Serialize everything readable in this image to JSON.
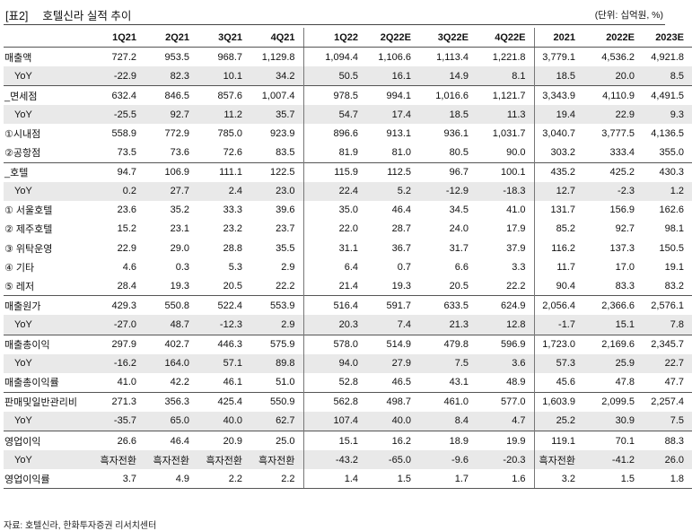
{
  "header": {
    "tag": "[표2]",
    "title": "호텔신라 실적 추이",
    "unit": "(단위: 십억원, %)"
  },
  "columns": [
    "1Q21",
    "2Q21",
    "3Q21",
    "4Q21",
    "1Q22",
    "2Q22E",
    "3Q22E",
    "4Q22E",
    "2021",
    "2022E",
    "2023E"
  ],
  "rows": [
    {
      "label": "매출액",
      "yoy": false,
      "values": [
        "727.2",
        "953.5",
        "968.7",
        "1,129.8",
        "1,094.4",
        "1,106.6",
        "1,113.4",
        "1,221.8",
        "3,779.1",
        "4,536.2",
        "4,921.8"
      ]
    },
    {
      "label": "YoY",
      "yoy": true,
      "values": [
        "-22.9",
        "82.3",
        "10.1",
        "34.2",
        "50.5",
        "16.1",
        "14.9",
        "8.1",
        "18.5",
        "20.0",
        "8.5"
      ]
    },
    {
      "label": "_면세점",
      "yoy": false,
      "values": [
        "632.4",
        "846.5",
        "857.6",
        "1,007.4",
        "978.5",
        "994.1",
        "1,016.6",
        "1,121.7",
        "3,343.9",
        "4,110.9",
        "4,491.5"
      ]
    },
    {
      "label": "YoY",
      "yoy": true,
      "values": [
        "-25.5",
        "92.7",
        "11.2",
        "35.7",
        "54.7",
        "17.4",
        "18.5",
        "11.3",
        "19.4",
        "22.9",
        "9.3"
      ]
    },
    {
      "label": "①시내점",
      "yoy": false,
      "values": [
        "558.9",
        "772.9",
        "785.0",
        "923.9",
        "896.6",
        "913.1",
        "936.1",
        "1,031.7",
        "3,040.7",
        "3,777.5",
        "4,136.5"
      ]
    },
    {
      "label": "②공항점",
      "yoy": false,
      "values": [
        "73.5",
        "73.6",
        "72.6",
        "83.5",
        "81.9",
        "81.0",
        "80.5",
        "90.0",
        "303.2",
        "333.4",
        "355.0"
      ]
    },
    {
      "label": "_호텔",
      "yoy": false,
      "values": [
        "94.7",
        "106.9",
        "111.1",
        "122.5",
        "115.9",
        "112.5",
        "96.7",
        "100.1",
        "435.2",
        "425.2",
        "430.3"
      ]
    },
    {
      "label": "YoY",
      "yoy": true,
      "values": [
        "0.2",
        "27.7",
        "2.4",
        "23.0",
        "22.4",
        "5.2",
        "-12.9",
        "-18.3",
        "12.7",
        "-2.3",
        "1.2"
      ]
    },
    {
      "label": "① 서울호텔",
      "yoy": false,
      "values": [
        "23.6",
        "35.2",
        "33.3",
        "39.6",
        "35.0",
        "46.4",
        "34.5",
        "41.0",
        "131.7",
        "156.9",
        "162.6"
      ]
    },
    {
      "label": "② 제주호텔",
      "yoy": false,
      "values": [
        "15.2",
        "23.1",
        "23.2",
        "23.7",
        "22.0",
        "28.7",
        "24.0",
        "17.9",
        "85.2",
        "92.7",
        "98.1"
      ]
    },
    {
      "label": "③ 위탁운영",
      "yoy": false,
      "values": [
        "22.9",
        "29.0",
        "28.8",
        "35.5",
        "31.1",
        "36.7",
        "31.7",
        "37.9",
        "116.2",
        "137.3",
        "150.5"
      ]
    },
    {
      "label": "④ 기타",
      "yoy": false,
      "values": [
        "4.6",
        "0.3",
        "5.3",
        "2.9",
        "6.4",
        "0.7",
        "6.6",
        "3.3",
        "11.7",
        "17.0",
        "19.1"
      ]
    },
    {
      "label": "⑤ 레저",
      "yoy": false,
      "values": [
        "28.4",
        "19.3",
        "20.5",
        "22.2",
        "21.4",
        "19.3",
        "20.5",
        "22.2",
        "90.4",
        "83.3",
        "83.2"
      ]
    },
    {
      "label": "매출원가",
      "yoy": false,
      "values": [
        "429.3",
        "550.8",
        "522.4",
        "553.9",
        "516.4",
        "591.7",
        "633.5",
        "624.9",
        "2,056.4",
        "2,366.6",
        "2,576.1"
      ]
    },
    {
      "label": "YoY",
      "yoy": true,
      "values": [
        "-27.0",
        "48.7",
        "-12.3",
        "2.9",
        "20.3",
        "7.4",
        "21.3",
        "12.8",
        "-1.7",
        "15.1",
        "7.8"
      ]
    },
    {
      "label": "매출총이익",
      "yoy": false,
      "values": [
        "297.9",
        "402.7",
        "446.3",
        "575.9",
        "578.0",
        "514.9",
        "479.8",
        "596.9",
        "1,723.0",
        "2,169.6",
        "2,345.7"
      ]
    },
    {
      "label": "YoY",
      "yoy": true,
      "values": [
        "-16.2",
        "164.0",
        "57.1",
        "89.8",
        "94.0",
        "27.9",
        "7.5",
        "3.6",
        "57.3",
        "25.9",
        "22.7"
      ]
    },
    {
      "label": "매출총이익률",
      "yoy": false,
      "values": [
        "41.0",
        "42.2",
        "46.1",
        "51.0",
        "52.8",
        "46.5",
        "43.1",
        "48.9",
        "45.6",
        "47.8",
        "47.7"
      ]
    },
    {
      "label": "판매및일반관리비",
      "yoy": false,
      "values": [
        "271.3",
        "356.3",
        "425.4",
        "550.9",
        "562.8",
        "498.7",
        "461.0",
        "577.0",
        "1,603.9",
        "2,099.5",
        "2,257.4"
      ]
    },
    {
      "label": "YoY",
      "yoy": true,
      "values": [
        "-35.7",
        "65.0",
        "40.0",
        "62.7",
        "107.4",
        "40.0",
        "8.4",
        "4.7",
        "25.2",
        "30.9",
        "7.5"
      ]
    },
    {
      "label": "영업이익",
      "yoy": false,
      "values": [
        "26.6",
        "46.4",
        "20.9",
        "25.0",
        "15.1",
        "16.2",
        "18.9",
        "19.9",
        "119.1",
        "70.1",
        "88.3"
      ]
    },
    {
      "label": "YoY",
      "yoy": true,
      "values": [
        "흑자전환",
        "흑자전환",
        "흑자전환",
        "흑자전환",
        "-43.2",
        "-65.0",
        "-9.6",
        "-20.3",
        "흑자전환",
        "-41.2",
        "26.0"
      ]
    },
    {
      "label": "영업이익률",
      "yoy": false,
      "values": [
        "3.7",
        "4.9",
        "2.2",
        "2.2",
        "1.4",
        "1.5",
        "1.7",
        "1.6",
        "3.2",
        "1.5",
        "1.8"
      ]
    }
  ],
  "separator_before_rows": [
    2,
    6,
    13,
    15,
    18,
    20
  ],
  "indented_rows": [
    1,
    3,
    7,
    14,
    16,
    19,
    21
  ],
  "source": "자료: 호텔신라, 한화투자증권 리서치센터"
}
